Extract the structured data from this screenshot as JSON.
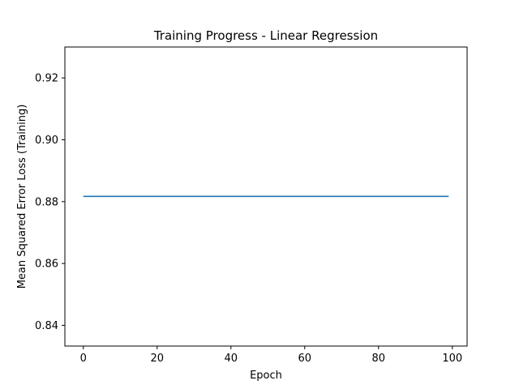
{
  "chart_data": {
    "type": "line",
    "title": "Training Progress - Linear Regression",
    "xlabel": "Epoch",
    "ylabel": "Mean Squared Error Loss (Training)",
    "xlim": [
      -5,
      104
    ],
    "ylim": [
      0.8333,
      0.93
    ],
    "x_ticks": [
      0,
      20,
      40,
      60,
      80,
      100
    ],
    "y_ticks": [
      0.84,
      0.86,
      0.88,
      0.9,
      0.92
    ],
    "x_tick_labels": [
      "0",
      "20",
      "40",
      "60",
      "80",
      "100"
    ],
    "y_tick_labels": [
      "0.84",
      "0.86",
      "0.88",
      "0.90",
      "0.92"
    ],
    "grid": false,
    "series": [
      {
        "x": [
          0,
          99
        ],
        "y": [
          0.8817,
          0.8817
        ],
        "color": "#1f77b4"
      }
    ]
  }
}
